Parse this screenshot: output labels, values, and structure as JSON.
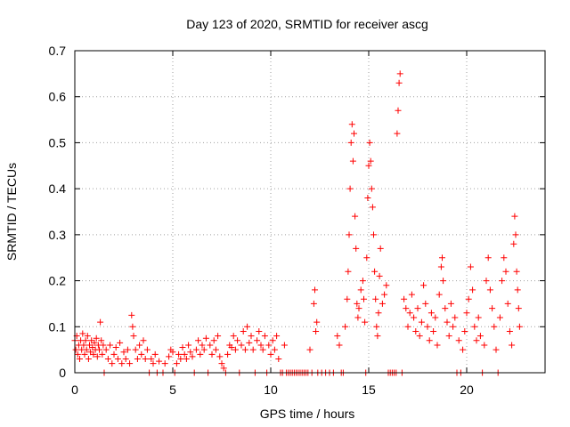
{
  "chart_data": {
    "type": "scatter",
    "title": "Day 123 of 2020, SRMTID for receiver ascg",
    "xlabel": "GPS time / hours",
    "ylabel": "SRMTID / TECUs",
    "xlim": [
      0,
      24
    ],
    "ylim": [
      0,
      0.7
    ],
    "x_ticks": [
      0,
      5,
      10,
      15,
      20
    ],
    "y_ticks": [
      0,
      0.1,
      0.2,
      0.3,
      0.4,
      0.5,
      0.6,
      0.7
    ],
    "x_tick_labels": [
      "0",
      "5",
      "10",
      "15",
      "20"
    ],
    "y_tick_labels": [
      "0",
      "0.1",
      "0.2",
      "0.3",
      "0.4",
      "0.5",
      "0.6",
      "0.7"
    ],
    "grid": true,
    "marker": "+",
    "color": "#ff0000",
    "series": [
      {
        "name": "ascg",
        "points": [
          [
            0.0,
            0.07
          ],
          [
            0.05,
            0.05
          ],
          [
            0.1,
            0.08
          ],
          [
            0.15,
            0.04
          ],
          [
            0.2,
            0.06
          ],
          [
            0.25,
            0.03
          ],
          [
            0.3,
            0.07
          ],
          [
            0.35,
            0.05
          ],
          [
            0.4,
            0.085
          ],
          [
            0.45,
            0.06
          ],
          [
            0.5,
            0.04
          ],
          [
            0.55,
            0.07
          ],
          [
            0.6,
            0.05
          ],
          [
            0.65,
            0.08
          ],
          [
            0.7,
            0.03
          ],
          [
            0.75,
            0.06
          ],
          [
            0.8,
            0.045
          ],
          [
            0.85,
            0.07
          ],
          [
            0.9,
            0.055
          ],
          [
            0.95,
            0.04
          ],
          [
            1.0,
            0.065
          ],
          [
            1.05,
            0.05
          ],
          [
            1.1,
            0.075
          ],
          [
            1.15,
            0.035
          ],
          [
            1.2,
            0.06
          ],
          [
            1.25,
            0.05
          ],
          [
            1.3,
            0.11
          ],
          [
            1.35,
            0.07
          ],
          [
            1.4,
            0.04
          ],
          [
            1.45,
            0.06
          ],
          [
            1.5,
            0.0
          ],
          [
            1.6,
            0.05
          ],
          [
            1.7,
            0.03
          ],
          [
            1.8,
            0.06
          ],
          [
            1.9,
            0.02
          ],
          [
            2.0,
            0.04
          ],
          [
            2.1,
            0.055
          ],
          [
            2.2,
            0.03
          ],
          [
            2.3,
            0.065
          ],
          [
            2.4,
            0.02
          ],
          [
            2.5,
            0.045
          ],
          [
            2.6,
            0.03
          ],
          [
            2.7,
            0.05
          ],
          [
            2.8,
            0.02
          ],
          [
            2.9,
            0.125
          ],
          [
            2.95,
            0.1
          ],
          [
            3.0,
            0.08
          ],
          [
            3.1,
            0.05
          ],
          [
            3.2,
            0.03
          ],
          [
            3.3,
            0.06
          ],
          [
            3.4,
            0.04
          ],
          [
            3.5,
            0.07
          ],
          [
            3.6,
            0.03
          ],
          [
            3.7,
            0.05
          ],
          [
            3.8,
            0.0
          ],
          [
            3.9,
            0.03
          ],
          [
            4.0,
            0.02
          ],
          [
            4.1,
            0.04
          ],
          [
            4.2,
            0.0
          ],
          [
            4.3,
            0.025
          ],
          [
            4.5,
            0.0
          ],
          [
            4.6,
            0.02
          ],
          [
            4.8,
            0.035
          ],
          [
            4.9,
            0.05
          ],
          [
            5.0,
            0.045
          ],
          [
            5.1,
            0.0
          ],
          [
            5.2,
            0.02
          ],
          [
            5.3,
            0.04
          ],
          [
            5.4,
            0.03
          ],
          [
            5.5,
            0.055
          ],
          [
            5.6,
            0.04
          ],
          [
            5.7,
            0.03
          ],
          [
            5.8,
            0.06
          ],
          [
            5.9,
            0.045
          ],
          [
            6.0,
            0.035
          ],
          [
            6.1,
            0.0
          ],
          [
            6.2,
            0.05
          ],
          [
            6.3,
            0.07
          ],
          [
            6.4,
            0.04
          ],
          [
            6.5,
            0.06
          ],
          [
            6.6,
            0.05
          ],
          [
            6.7,
            0.075
          ],
          [
            6.8,
            0.0
          ],
          [
            6.9,
            0.06
          ],
          [
            7.0,
            0.04
          ],
          [
            7.1,
            0.07
          ],
          [
            7.2,
            0.05
          ],
          [
            7.3,
            0.08
          ],
          [
            7.4,
            0.035
          ],
          [
            7.5,
            0.02
          ],
          [
            7.6,
            0.01
          ],
          [
            7.7,
            0.0
          ],
          [
            7.8,
            0.04
          ],
          [
            7.9,
            0.06
          ],
          [
            8.0,
            0.055
          ],
          [
            8.1,
            0.08
          ],
          [
            8.2,
            0.05
          ],
          [
            8.3,
            0.07
          ],
          [
            8.4,
            0.0
          ],
          [
            8.5,
            0.06
          ],
          [
            8.6,
            0.09
          ],
          [
            8.7,
            0.05
          ],
          [
            8.8,
            0.1
          ],
          [
            8.9,
            0.065
          ],
          [
            9.0,
            0.08
          ],
          [
            9.1,
            0.05
          ],
          [
            9.2,
            0.0
          ],
          [
            9.3,
            0.07
          ],
          [
            9.4,
            0.09
          ],
          [
            9.5,
            0.06
          ],
          [
            9.6,
            0.05
          ],
          [
            9.7,
            0.08
          ],
          [
            9.8,
            0.0
          ],
          [
            9.9,
            0.06
          ],
          [
            10.0,
            0.04
          ],
          [
            10.1,
            0.07
          ],
          [
            10.2,
            0.05
          ],
          [
            10.3,
            0.08
          ],
          [
            10.4,
            0.03
          ],
          [
            10.5,
            0.0
          ],
          [
            10.6,
            0.0
          ],
          [
            10.7,
            0.06
          ],
          [
            10.8,
            0.0
          ],
          [
            10.9,
            0.0
          ],
          [
            11.0,
            0.0
          ],
          [
            11.1,
            0.0
          ],
          [
            11.2,
            0.0
          ],
          [
            11.3,
            0.0
          ],
          [
            11.4,
            0.0
          ],
          [
            11.5,
            0.0
          ],
          [
            11.6,
            0.0
          ],
          [
            11.7,
            0.0
          ],
          [
            11.8,
            0.0
          ],
          [
            11.9,
            0.0
          ],
          [
            12.0,
            0.05
          ],
          [
            12.1,
            0.0
          ],
          [
            12.2,
            0.15
          ],
          [
            12.25,
            0.18
          ],
          [
            12.3,
            0.09
          ],
          [
            12.35,
            0.11
          ],
          [
            12.4,
            0.0
          ],
          [
            12.6,
            0.0
          ],
          [
            12.8,
            0.0
          ],
          [
            13.0,
            0.0
          ],
          [
            13.2,
            0.0
          ],
          [
            13.4,
            0.08
          ],
          [
            13.5,
            0.06
          ],
          [
            13.6,
            0.0
          ],
          [
            13.7,
            0.0
          ],
          [
            13.8,
            0.1
          ],
          [
            13.9,
            0.16
          ],
          [
            13.95,
            0.22
          ],
          [
            14.0,
            0.3
          ],
          [
            14.05,
            0.4
          ],
          [
            14.1,
            0.5
          ],
          [
            14.15,
            0.54
          ],
          [
            14.2,
            0.46
          ],
          [
            14.25,
            0.52
          ],
          [
            14.3,
            0.34
          ],
          [
            14.35,
            0.27
          ],
          [
            14.4,
            0.15
          ],
          [
            14.45,
            0.12
          ],
          [
            14.5,
            0.14
          ],
          [
            14.6,
            0.18
          ],
          [
            14.7,
            0.2
          ],
          [
            14.75,
            0.16
          ],
          [
            14.8,
            0.11
          ],
          [
            14.85,
            0.0
          ],
          [
            14.9,
            0.25
          ],
          [
            14.95,
            0.38
          ],
          [
            15.0,
            0.45
          ],
          [
            15.05,
            0.5
          ],
          [
            15.1,
            0.46
          ],
          [
            15.15,
            0.4
          ],
          [
            15.2,
            0.36
          ],
          [
            15.25,
            0.3
          ],
          [
            15.3,
            0.22
          ],
          [
            15.35,
            0.16
          ],
          [
            15.4,
            0.1
          ],
          [
            15.45,
            0.08
          ],
          [
            15.5,
            0.13
          ],
          [
            15.55,
            0.21
          ],
          [
            15.6,
            0.27
          ],
          [
            15.7,
            0.15
          ],
          [
            15.8,
            0.17
          ],
          [
            15.9,
            0.19
          ],
          [
            16.0,
            0.0
          ],
          [
            16.1,
            0.0
          ],
          [
            16.2,
            0.0
          ],
          [
            16.3,
            0.0
          ],
          [
            16.4,
            0.0
          ],
          [
            16.45,
            0.52
          ],
          [
            16.5,
            0.57
          ],
          [
            16.55,
            0.63
          ],
          [
            16.6,
            0.65
          ],
          [
            16.7,
            0.0
          ],
          [
            16.8,
            0.16
          ],
          [
            16.9,
            0.14
          ],
          [
            17.0,
            0.1
          ],
          [
            17.1,
            0.13
          ],
          [
            17.2,
            0.17
          ],
          [
            17.3,
            0.12
          ],
          [
            17.4,
            0.09
          ],
          [
            17.5,
            0.14
          ],
          [
            17.6,
            0.08
          ],
          [
            17.7,
            0.11
          ],
          [
            17.8,
            0.19
          ],
          [
            17.9,
            0.15
          ],
          [
            18.0,
            0.1
          ],
          [
            18.1,
            0.07
          ],
          [
            18.2,
            0.13
          ],
          [
            18.3,
            0.09
          ],
          [
            18.4,
            0.12
          ],
          [
            18.5,
            0.06
          ],
          [
            18.6,
            0.17
          ],
          [
            18.7,
            0.23
          ],
          [
            18.75,
            0.25
          ],
          [
            18.8,
            0.2
          ],
          [
            18.9,
            0.14
          ],
          [
            19.0,
            0.11
          ],
          [
            19.1,
            0.08
          ],
          [
            19.2,
            0.15
          ],
          [
            19.3,
            0.1
          ],
          [
            19.4,
            0.12
          ],
          [
            19.5,
            0.0
          ],
          [
            19.6,
            0.07
          ],
          [
            19.7,
            0.0
          ],
          [
            19.8,
            0.05
          ],
          [
            19.9,
            0.09
          ],
          [
            20.0,
            0.13
          ],
          [
            20.1,
            0.16
          ],
          [
            20.2,
            0.23
          ],
          [
            20.3,
            0.18
          ],
          [
            20.4,
            0.1
          ],
          [
            20.5,
            0.07
          ],
          [
            20.6,
            0.12
          ],
          [
            20.7,
            0.08
          ],
          [
            20.8,
            0.0
          ],
          [
            20.9,
            0.06
          ],
          [
            21.0,
            0.2
          ],
          [
            21.1,
            0.25
          ],
          [
            21.2,
            0.18
          ],
          [
            21.3,
            0.14
          ],
          [
            21.4,
            0.1
          ],
          [
            21.5,
            0.05
          ],
          [
            21.6,
            0.0
          ],
          [
            21.7,
            0.12
          ],
          [
            21.8,
            0.2
          ],
          [
            21.9,
            0.25
          ],
          [
            22.0,
            0.22
          ],
          [
            22.1,
            0.15
          ],
          [
            22.2,
            0.09
          ],
          [
            22.3,
            0.06
          ],
          [
            22.4,
            0.28
          ],
          [
            22.45,
            0.34
          ],
          [
            22.5,
            0.3
          ],
          [
            22.55,
            0.22
          ],
          [
            22.6,
            0.18
          ],
          [
            22.65,
            0.14
          ],
          [
            22.7,
            0.1
          ]
        ]
      }
    ]
  }
}
